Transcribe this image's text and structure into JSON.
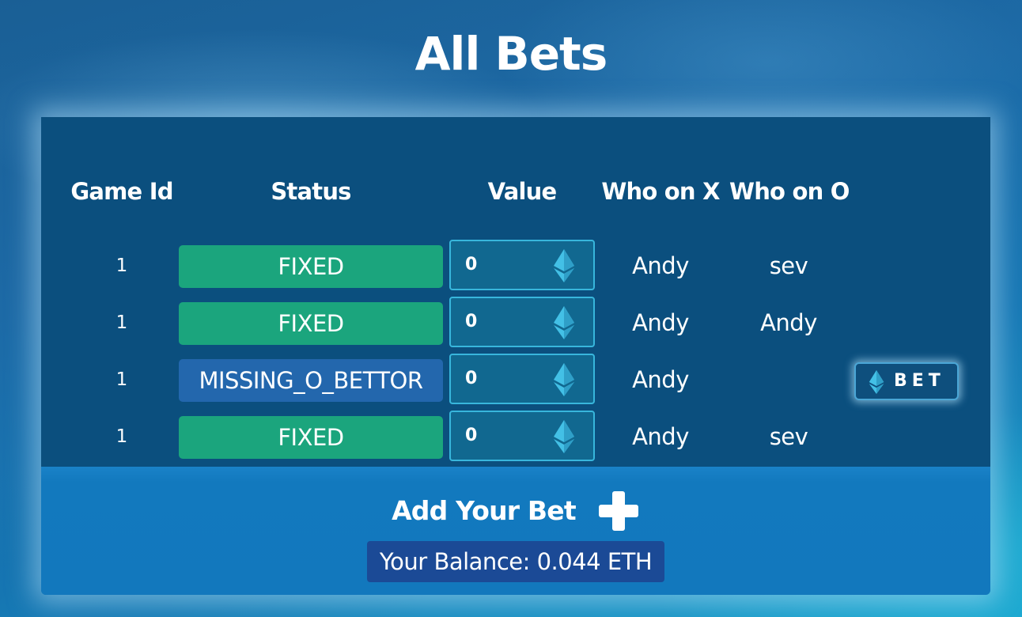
{
  "page": {
    "title": "All Bets"
  },
  "table": {
    "headers": {
      "game_id": "Game Id",
      "status": "Status",
      "value": "Value",
      "who_x": "Who on X",
      "who_o": "Who on O"
    },
    "rows": [
      {
        "game_id": "1",
        "status": "FIXED",
        "status_color": "#1ba57d",
        "value": "0",
        "who_x": "Andy",
        "who_o": "sev",
        "show_bet_button": false
      },
      {
        "game_id": "1",
        "status": "FIXED",
        "status_color": "#1ba57d",
        "value": "0",
        "who_x": "Andy",
        "who_o": "Andy",
        "show_bet_button": false
      },
      {
        "game_id": "1",
        "status": "MISSING_O_BETTOR",
        "status_color": "#2367ad",
        "value": "0",
        "who_x": "Andy",
        "who_o": "",
        "show_bet_button": true
      },
      {
        "game_id": "1",
        "status": "FIXED",
        "status_color": "#1ba57d",
        "value": "0",
        "who_x": "Andy",
        "who_o": "sev",
        "show_bet_button": false
      }
    ],
    "value_icon": "ethereum-icon",
    "bet_button": {
      "label": "BET",
      "icon": "ethereum-icon"
    }
  },
  "footer": {
    "add_bet_label": "Add Your Bet",
    "add_bet_icon": "plus-icon",
    "balance": "Your Balance: 0.044 ETH"
  },
  "colors": {
    "panel_dark": "#0b4f7e",
    "panel_light": "#1278bd",
    "status_fixed": "#1ba57d",
    "status_missing": "#2367ad",
    "eth_icon": "#43c0e6",
    "balance_bg": "#1b4a96"
  }
}
